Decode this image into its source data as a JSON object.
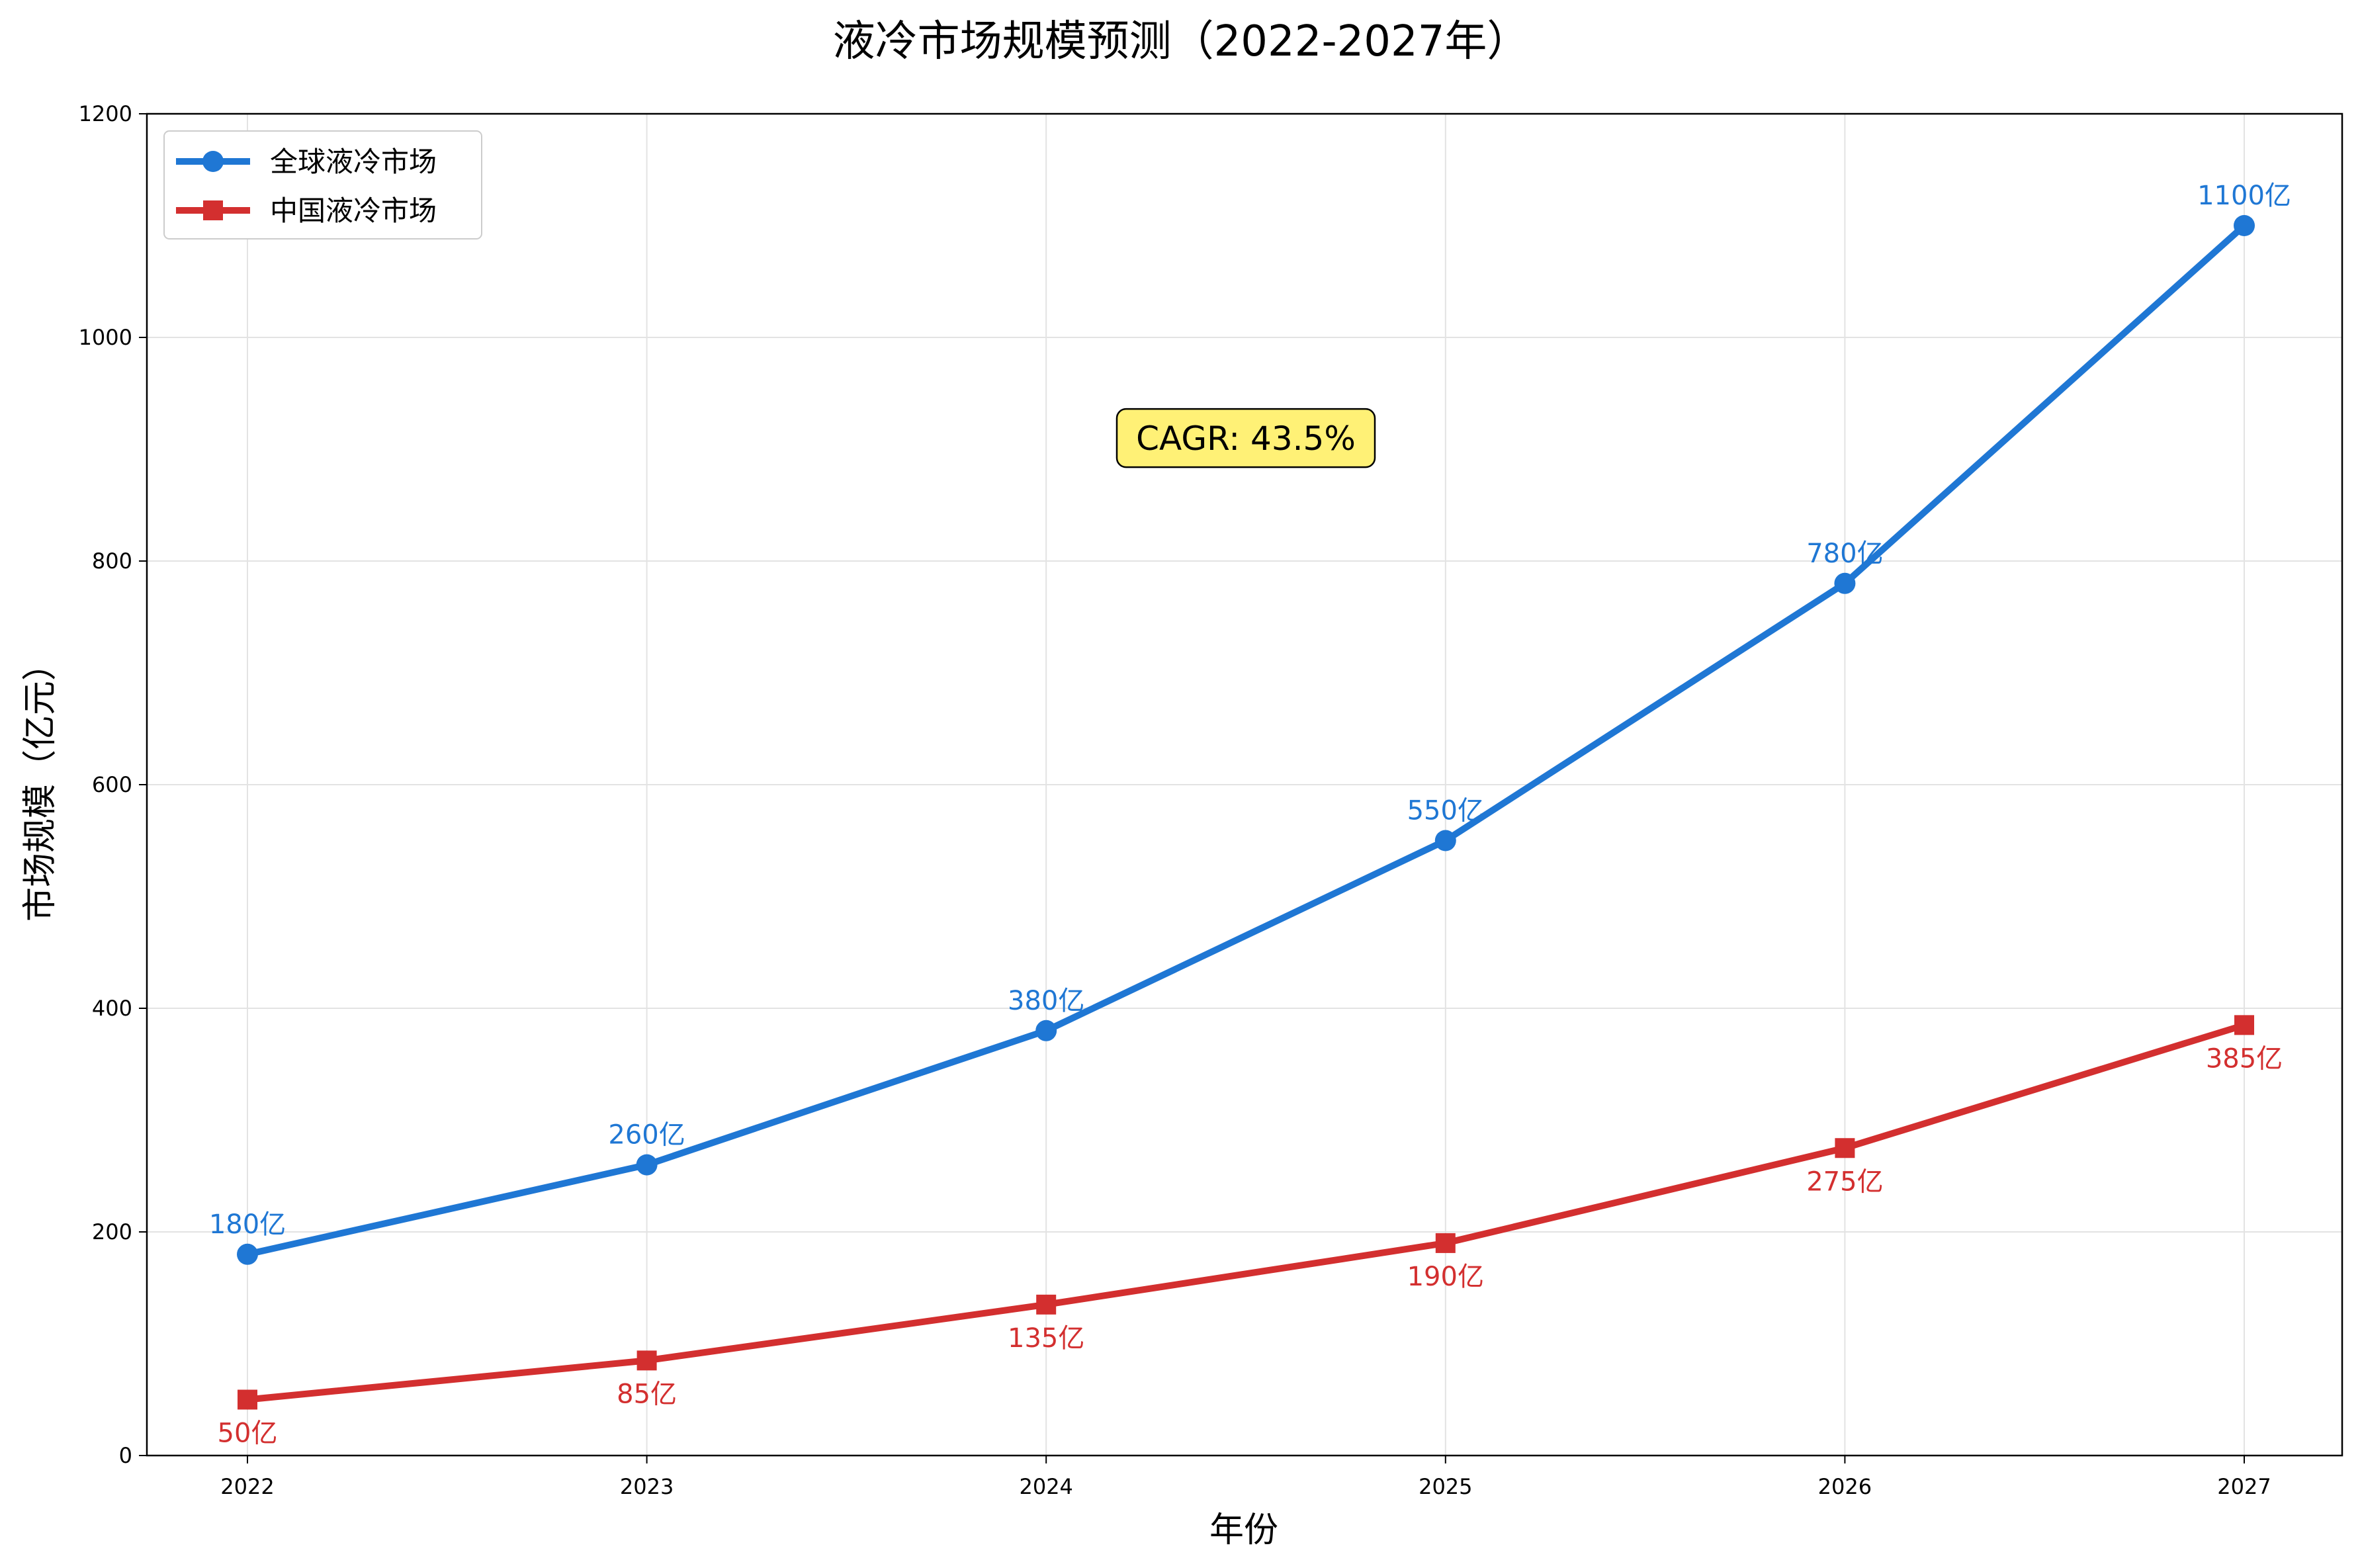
{
  "chart_data": {
    "type": "line",
    "title": "液冷市场规模预测（2022-2027年）",
    "xlabel": "年份",
    "ylabel": "市场规模（亿元）",
    "categories": [
      "2022",
      "2023",
      "2024",
      "2025",
      "2026",
      "2027"
    ],
    "ylim": [
      0,
      1200
    ],
    "yticks": [
      "0",
      "200",
      "400",
      "600",
      "800",
      "1000",
      "1200"
    ],
    "grid": true,
    "legend_position": "top-left",
    "series": [
      {
        "name": "全球液冷市场",
        "color": "#1f77d4",
        "marker": "circle",
        "values": [
          180,
          260,
          380,
          550,
          780,
          1100
        ],
        "labels": [
          "180亿",
          "260亿",
          "380亿",
          "550亿",
          "780亿",
          "1100亿"
        ],
        "label_position": "above"
      },
      {
        "name": "中国液冷市场",
        "color": "#d32f2f",
        "marker": "square",
        "values": [
          50,
          85,
          135,
          190,
          275,
          385
        ],
        "labels": [
          "50亿",
          "85亿",
          "135亿",
          "190亿",
          "275亿",
          "385亿"
        ],
        "label_position": "below"
      }
    ],
    "annotation": {
      "text": "CAGR: 43.5%",
      "at_x": 2024.5,
      "at_y": 910,
      "background": "#fff176"
    }
  }
}
